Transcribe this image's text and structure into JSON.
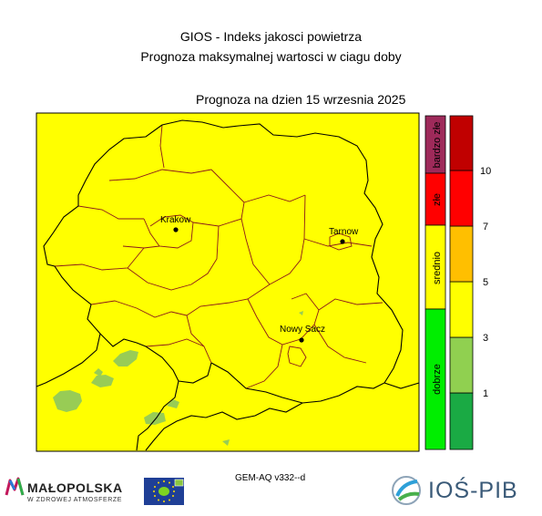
{
  "header": {
    "title_line1": "GIOS - Indeks jakosci powietrza",
    "title_line2": "Prognoza maksymalnej wartosci w ciagu doby",
    "forecast_date": "Prognoza na dzien  15 wrzesnia 2025"
  },
  "map": {
    "fill_color": "#ffff00",
    "patch_color": "#98cc55",
    "province_border_color": "#000000",
    "county_border_color": "#8b1a1a",
    "cities": [
      {
        "name": "Krakow"
      },
      {
        "name": "Tarnow"
      },
      {
        "name": "Nowy Sacz"
      }
    ]
  },
  "legend_categories": [
    {
      "label": "bardzo złe",
      "color": "#9e2a5a"
    },
    {
      "label": "złe",
      "color": "#ff0000"
    },
    {
      "label": "srednio",
      "color": "#ffff00"
    },
    {
      "label": "dobrze",
      "color": "#00ee00"
    }
  ],
  "colorbar": {
    "colors": [
      "#1aaa44",
      "#90d050",
      "#ffff00",
      "#ffbf00",
      "#ff0000",
      "#c00000"
    ],
    "tick_labels": [
      "1",
      "3",
      "5",
      "7",
      "10"
    ]
  },
  "footer": {
    "model_label": "GEM-AQ v332--d",
    "logo_malopolska": "MAŁOPOLSKA",
    "logo_malopolska_sub": "W ZDROWEJ ATMOSFERZE",
    "logo_ios": "IOŚ-PIB"
  }
}
